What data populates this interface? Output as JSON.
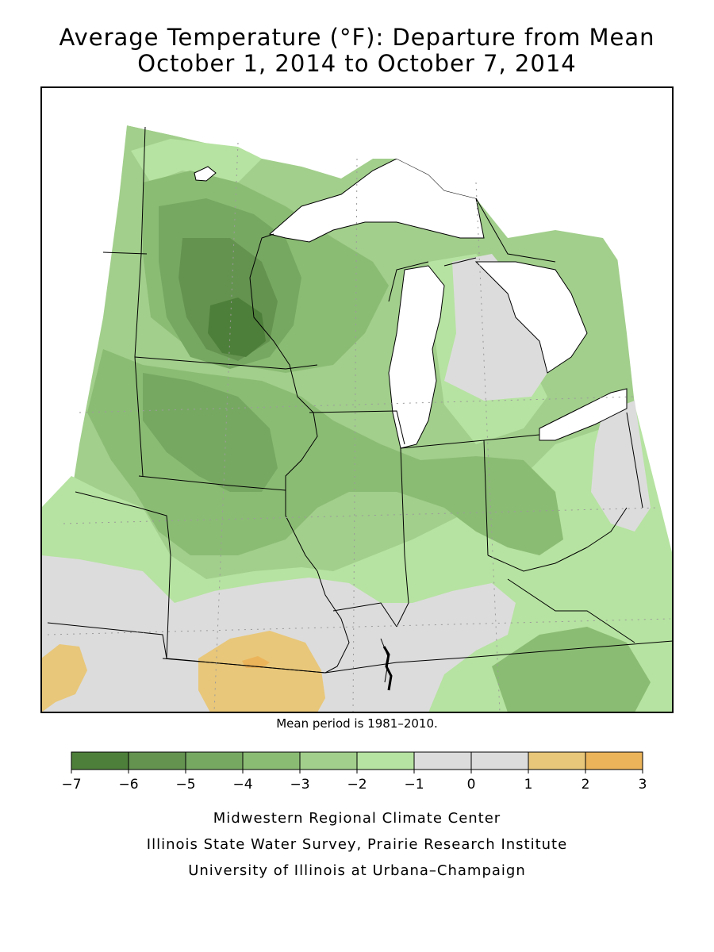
{
  "title": {
    "line1": "Average Temperature (°F): Departure from Mean",
    "line2": "October 1, 2014 to October 7, 2014"
  },
  "note": "Mean period is 1981–2010.",
  "legend": {
    "ticks": [
      "−7",
      "−6",
      "−5",
      "−4",
      "−3",
      "−2",
      "−1",
      "0",
      "1",
      "2",
      "3"
    ],
    "colors": [
      "#4e7f3a",
      "#649350",
      "#77a862",
      "#8bbc74",
      "#a2cf8c",
      "#b6e3a1",
      "#dcdcdc",
      "#dcdcdc",
      "#e8c77a",
      "#ecb45a"
    ]
  },
  "colors": {
    "water": "#ffffff",
    "neutral": "#dcdcdc",
    "warm1": "#e8c77a",
    "warm2": "#ecb45a",
    "cool1": "#b6e3a1",
    "cool2": "#a2cf8c",
    "cool3": "#8bbc74",
    "cool4": "#77a862",
    "cool5": "#649350",
    "cool6": "#4e7f3a"
  },
  "credits": [
    "Midwestern Regional Climate Center",
    "Illinois State Water Survey, Prairie Research Institute",
    "University of Illinois at Urbana–Champaign"
  ]
}
